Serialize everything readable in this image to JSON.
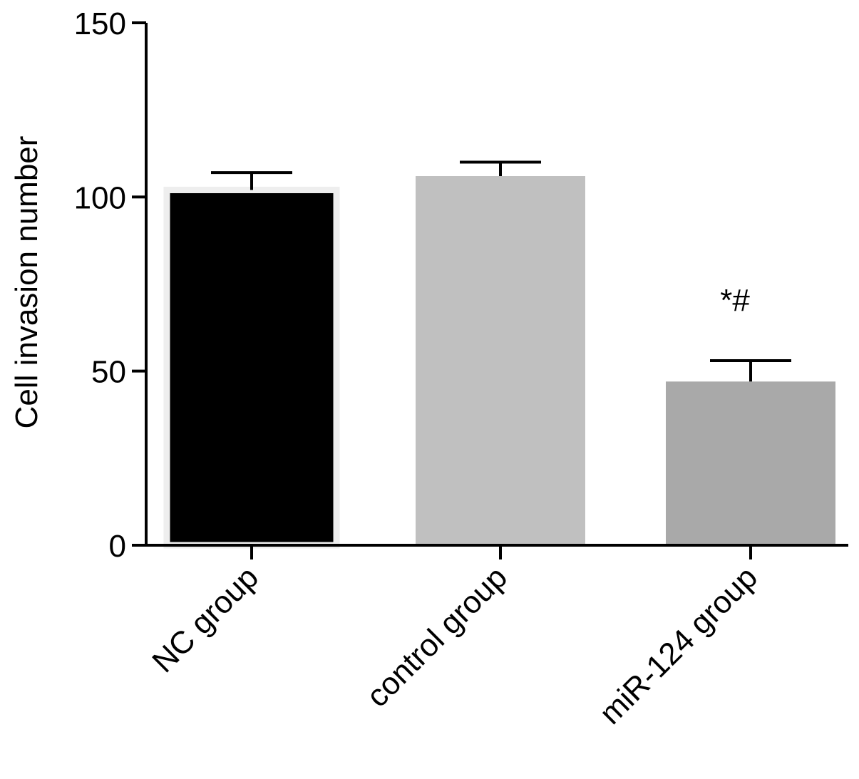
{
  "chart_data": {
    "type": "bar",
    "title": "",
    "xlabel": "",
    "ylabel": "Cell invasion number",
    "ylim": [
      0,
      150
    ],
    "yticks": [
      0,
      50,
      100,
      150
    ],
    "grid": false,
    "categories": [
      "NC group",
      "control group",
      "miR-124 group"
    ],
    "values": [
      102,
      106,
      47
    ],
    "errors": [
      5,
      4,
      6
    ],
    "bar_colors": [
      "#000000",
      "#c0c0c0",
      "#a9a9a9"
    ],
    "annotations": [
      "",
      "",
      "*#"
    ]
  }
}
